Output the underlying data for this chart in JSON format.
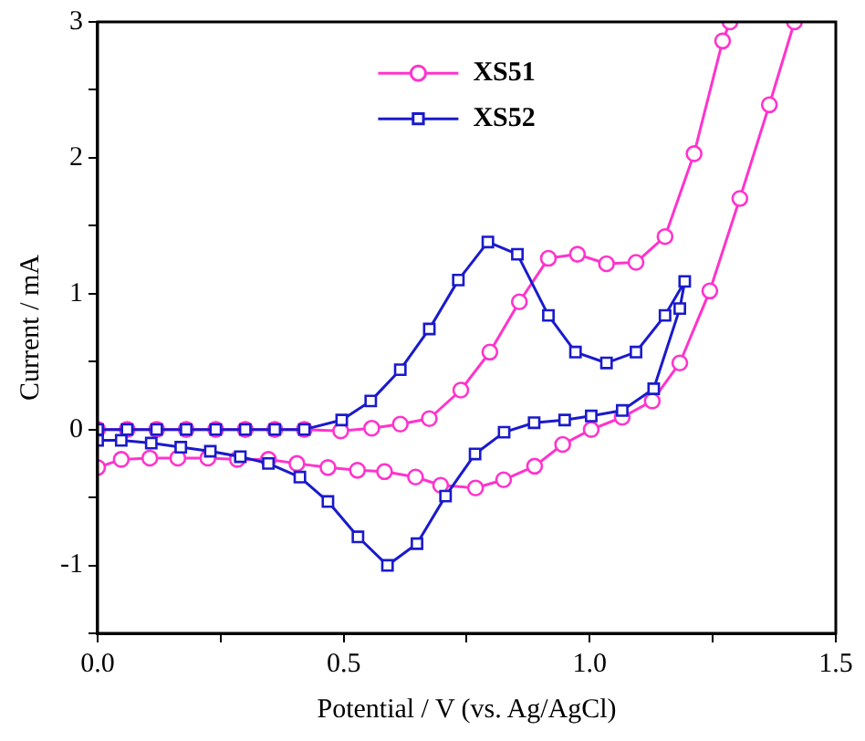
{
  "chart_data": {
    "type": "line",
    "xlabel": "Potential / V (vs. Ag/AgCl)",
    "ylabel": "Current / mA",
    "xlim": [
      0,
      1.5
    ],
    "ylim": [
      -1.5,
      3
    ],
    "xticks": [
      {
        "value": 0,
        "label": "0.0"
      },
      {
        "value": 0.25,
        "label": null
      },
      {
        "value": 0.5,
        "label": "0.5"
      },
      {
        "value": 0.75,
        "label": null
      },
      {
        "value": 1,
        "label": "1.0"
      },
      {
        "value": 1.25,
        "label": null
      },
      {
        "value": 1.5,
        "label": "1.5"
      }
    ],
    "yticks": [
      {
        "value": -1.5,
        "label": null
      },
      -1,
      {
        "value": -0.5,
        "label": null
      },
      0,
      {
        "value": 0.5,
        "label": null
      },
      1,
      {
        "value": 1.5,
        "label": null
      },
      2,
      {
        "value": 2.5,
        "label": null
      },
      3
    ],
    "grid": false,
    "legend": "top",
    "line_style": "solid",
    "series": [
      {
        "name": "XS51",
        "color": "#ff33cc",
        "marker": "circle",
        "x": [
          0,
          0.048,
          0.106,
          0.163,
          0.224,
          0.284,
          0.347,
          0.405,
          0.468,
          0.528,
          0.583,
          0.646,
          0.697,
          0.768,
          0.825,
          0.888,
          0.945,
          1.003,
          1.066,
          1.127,
          1.183,
          1.244,
          1.305,
          1.365,
          1.416,
          1.35,
          0,
          0.06,
          0.12,
          0.18,
          0.24,
          0.3,
          0.36,
          0.42,
          0.494,
          0.557,
          0.615,
          0.674,
          0.738,
          0.797,
          0.857,
          0.916,
          0.975,
          1.034,
          1.094,
          1.153,
          1.212,
          1.27,
          1.285
        ],
        "values": [
          -0.28,
          -0.22,
          -0.21,
          -0.21,
          -0.21,
          -0.22,
          -0.22,
          -0.25,
          -0.28,
          -0.3,
          -0.31,
          -0.35,
          -0.41,
          -0.43,
          -0.37,
          -0.27,
          -0.11,
          0,
          0.09,
          0.21,
          0.49,
          1.02,
          1.7,
          2.39,
          3,
          null,
          0,
          0,
          0,
          0,
          0,
          0,
          0,
          0,
          -0.01,
          0.01,
          0.04,
          0.08,
          0.29,
          0.57,
          0.94,
          1.26,
          1.29,
          1.22,
          1.23,
          1.42,
          2.03,
          2.86,
          3
        ]
      },
      {
        "name": "XS52",
        "color": "#1a1acc",
        "marker": "square",
        "x": [
          0,
          0.06,
          0.12,
          0.18,
          0.24,
          0.3,
          0.36,
          0.42,
          0.496,
          0.555,
          0.615,
          0.674,
          0.733,
          0.793,
          0.853,
          0.916,
          0.971,
          1.034,
          1.094,
          1.153,
          1.193,
          1.183,
          1.13,
          1.066,
          1.003,
          0.949,
          0.887,
          0.826,
          0.767,
          0.707,
          0.649,
          0.589,
          0.529,
          0.468,
          0.411,
          0.347,
          0.29,
          0.229,
          0.169,
          0.109,
          0.048,
          0
        ],
        "values": [
          0,
          0,
          0,
          0,
          0,
          0,
          0,
          0,
          0.07,
          0.21,
          0.44,
          0.74,
          1.1,
          1.38,
          1.29,
          0.84,
          0.57,
          0.49,
          0.57,
          0.84,
          1.09,
          0.89,
          0.3,
          0.14,
          0.1,
          0.07,
          0.05,
          -0.02,
          -0.18,
          -0.49,
          -0.84,
          -1,
          -0.79,
          -0.53,
          -0.35,
          -0.25,
          -0.2,
          -0.16,
          -0.13,
          -0.1,
          -0.08,
          -0.08
        ]
      }
    ]
  }
}
